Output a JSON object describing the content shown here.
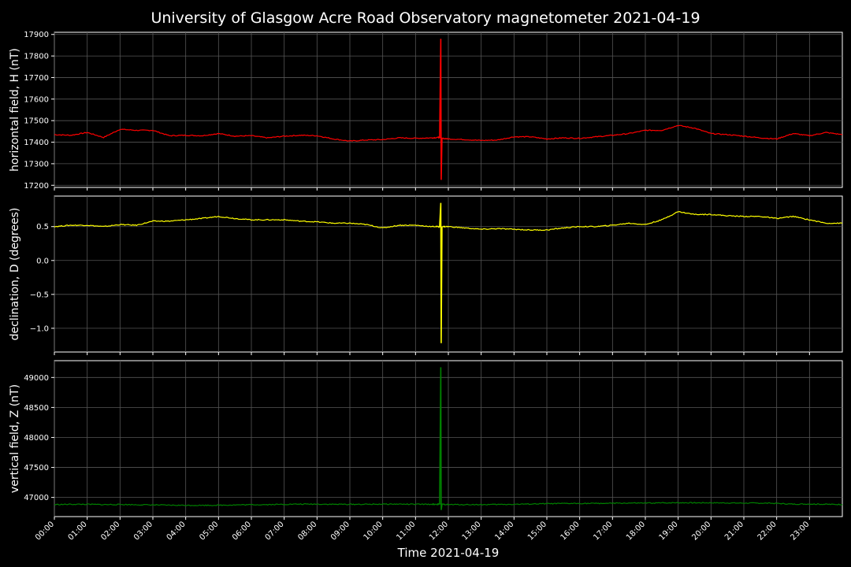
{
  "chart_data": {
    "type": "line",
    "title": "University of Glasgow Acre Road Observatory magnetometer 2021-04-19",
    "xlabel": "Time 2021-04-19",
    "x_tick_labels": [
      "00:00",
      "01:00",
      "02:00",
      "03:00",
      "04:00",
      "05:00",
      "06:00",
      "07:00",
      "08:00",
      "09:00",
      "10:00",
      "11:00",
      "12:00",
      "13:00",
      "14:00",
      "15:00",
      "16:00",
      "17:00",
      "18:00",
      "19:00",
      "20:00",
      "21:00",
      "22:00",
      "23:00"
    ],
    "xlim_hours": [
      0,
      24
    ],
    "grid": true,
    "background": "#000000",
    "panels": [
      {
        "ylabel": "horizontal field, H (nT)",
        "color": "#ff0000",
        "ylim": [
          17190,
          17910
        ],
        "yticks": [
          17200,
          17300,
          17400,
          17500,
          17600,
          17700,
          17800,
          17900
        ],
        "ytick_labels": [
          "17200",
          "17300",
          "17400",
          "17500",
          "17600",
          "17700",
          "17800",
          "17900"
        ],
        "series_hours": [
          0,
          0.5,
          1,
          1.5,
          2,
          2.5,
          3,
          3.5,
          4,
          4.5,
          5,
          5.5,
          6,
          6.5,
          7,
          7.5,
          8,
          8.5,
          9,
          9.5,
          10,
          10.5,
          11,
          11.5,
          11.7,
          11.75,
          11.8,
          12,
          12.5,
          13,
          13.5,
          14,
          14.5,
          15,
          15.5,
          16,
          16.5,
          17,
          17.5,
          18,
          18.5,
          19,
          19.5,
          20,
          20.5,
          21,
          21.5,
          22,
          22.5,
          23,
          23.5,
          24
        ],
        "series_values": [
          17435,
          17432,
          17445,
          17422,
          17460,
          17455,
          17455,
          17430,
          17432,
          17430,
          17440,
          17428,
          17430,
          17420,
          17428,
          17432,
          17430,
          17415,
          17405,
          17410,
          17412,
          17420,
          17418,
          17420,
          17422,
          17425,
          17418,
          17415,
          17412,
          17408,
          17410,
          17425,
          17425,
          17415,
          17420,
          17418,
          17425,
          17432,
          17440,
          17455,
          17455,
          17478,
          17465,
          17440,
          17435,
          17428,
          17420,
          17415,
          17440,
          17430,
          17445,
          17435
        ],
        "spike": {
          "hour": 11.77,
          "max": 17880,
          "min": 17225
        }
      },
      {
        "ylabel": "declination, D (degrees)",
        "color": "#ffff00",
        "ylim": [
          -1.35,
          0.95
        ],
        "yticks": [
          -1.0,
          -0.5,
          0.0,
          0.5
        ],
        "ytick_labels": [
          "−1.0",
          "−0.5",
          "0.0",
          "0.5"
        ],
        "series_hours": [
          0,
          0.5,
          1,
          1.5,
          2,
          2.5,
          3,
          3.5,
          4,
          4.5,
          5,
          5.5,
          6,
          6.5,
          7,
          7.5,
          8,
          8.5,
          9,
          9.5,
          10,
          10.5,
          11,
          11.5,
          11.7,
          11.75,
          11.8,
          12,
          12.5,
          13,
          13.5,
          14,
          14.5,
          15,
          15.5,
          16,
          16.5,
          17,
          17.5,
          18,
          18.5,
          19,
          19.5,
          20,
          20.5,
          21,
          21.5,
          22,
          22.5,
          23,
          23.5,
          24
        ],
        "series_values": [
          0.5,
          0.52,
          0.52,
          0.5,
          0.53,
          0.52,
          0.58,
          0.58,
          0.6,
          0.62,
          0.65,
          0.62,
          0.6,
          0.6,
          0.6,
          0.58,
          0.57,
          0.55,
          0.55,
          0.53,
          0.48,
          0.52,
          0.52,
          0.5,
          0.5,
          0.5,
          0.5,
          0.5,
          0.48,
          0.46,
          0.47,
          0.46,
          0.45,
          0.45,
          0.48,
          0.5,
          0.5,
          0.52,
          0.55,
          0.53,
          0.6,
          0.72,
          0.68,
          0.68,
          0.66,
          0.65,
          0.65,
          0.62,
          0.65,
          0.6,
          0.55,
          0.55
        ],
        "spike": {
          "hour": 11.77,
          "max": 0.85,
          "min": -1.22
        }
      },
      {
        "ylabel": "vertical field, Z (nT)",
        "color": "#008000",
        "ylim": [
          46680,
          49280
        ],
        "yticks": [
          47000,
          47500,
          48000,
          48500,
          49000
        ],
        "ytick_labels": [
          "47000",
          "47500",
          "48000",
          "48500",
          "49000"
        ],
        "series_hours": [
          0,
          0.5,
          1,
          1.5,
          2,
          2.5,
          3,
          3.5,
          4,
          4.5,
          5,
          5.5,
          6,
          6.5,
          7,
          7.5,
          8,
          8.5,
          9,
          9.5,
          10,
          10.5,
          11,
          11.5,
          11.7,
          11.75,
          11.8,
          12,
          12.5,
          13,
          13.5,
          14,
          14.5,
          15,
          15.5,
          16,
          16.5,
          17,
          17.5,
          18,
          18.5,
          19,
          19.5,
          20,
          20.5,
          21,
          21.5,
          22,
          22.5,
          23,
          23.5,
          24
        ],
        "series_values": [
          46880,
          46885,
          46885,
          46880,
          46882,
          46878,
          46875,
          46870,
          46868,
          46868,
          46870,
          46875,
          46878,
          46880,
          46885,
          46888,
          46888,
          46885,
          46885,
          46885,
          46888,
          46888,
          46885,
          46885,
          46885,
          46885,
          46885,
          46880,
          46880,
          46880,
          46882,
          46885,
          46890,
          46895,
          46898,
          46900,
          46900,
          46902,
          46905,
          46905,
          46908,
          46912,
          46910,
          46910,
          46908,
          46905,
          46905,
          46900,
          46888,
          46890,
          46885,
          46882
        ],
        "spike": {
          "hour": 11.77,
          "max": 49170,
          "min": 46790
        }
      }
    ]
  }
}
